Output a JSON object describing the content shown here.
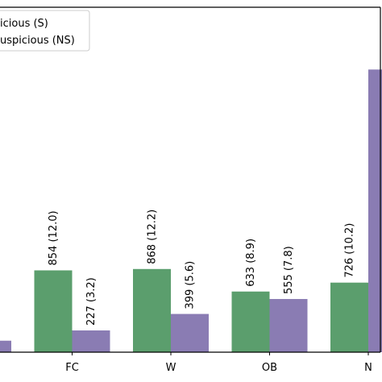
{
  "chart_data": {
    "type": "bar",
    "categories": [
      "",
      "FC",
      "W",
      "OB",
      "N"
    ],
    "series": [
      {
        "name": "icious (S)",
        "color": "#5b9e6d",
        "values": [
          null,
          854,
          868,
          633,
          726
        ],
        "labels": [
          "",
          "854 (12.0)",
          "868 (12.2)",
          "633 (8.9)",
          "726 (10.2)"
        ]
      },
      {
        "name": "uspicious (NS)",
        "color": "#8a7cb3",
        "values": [
          120,
          227,
          399,
          555,
          2950
        ],
        "labels": [
          "",
          "227 (3.2)",
          "399 (5.6)",
          "555 (7.8)",
          ""
        ]
      }
    ],
    "ylim": [
      0,
      3600
    ],
    "legend_position": "top-left",
    "grid": false
  }
}
